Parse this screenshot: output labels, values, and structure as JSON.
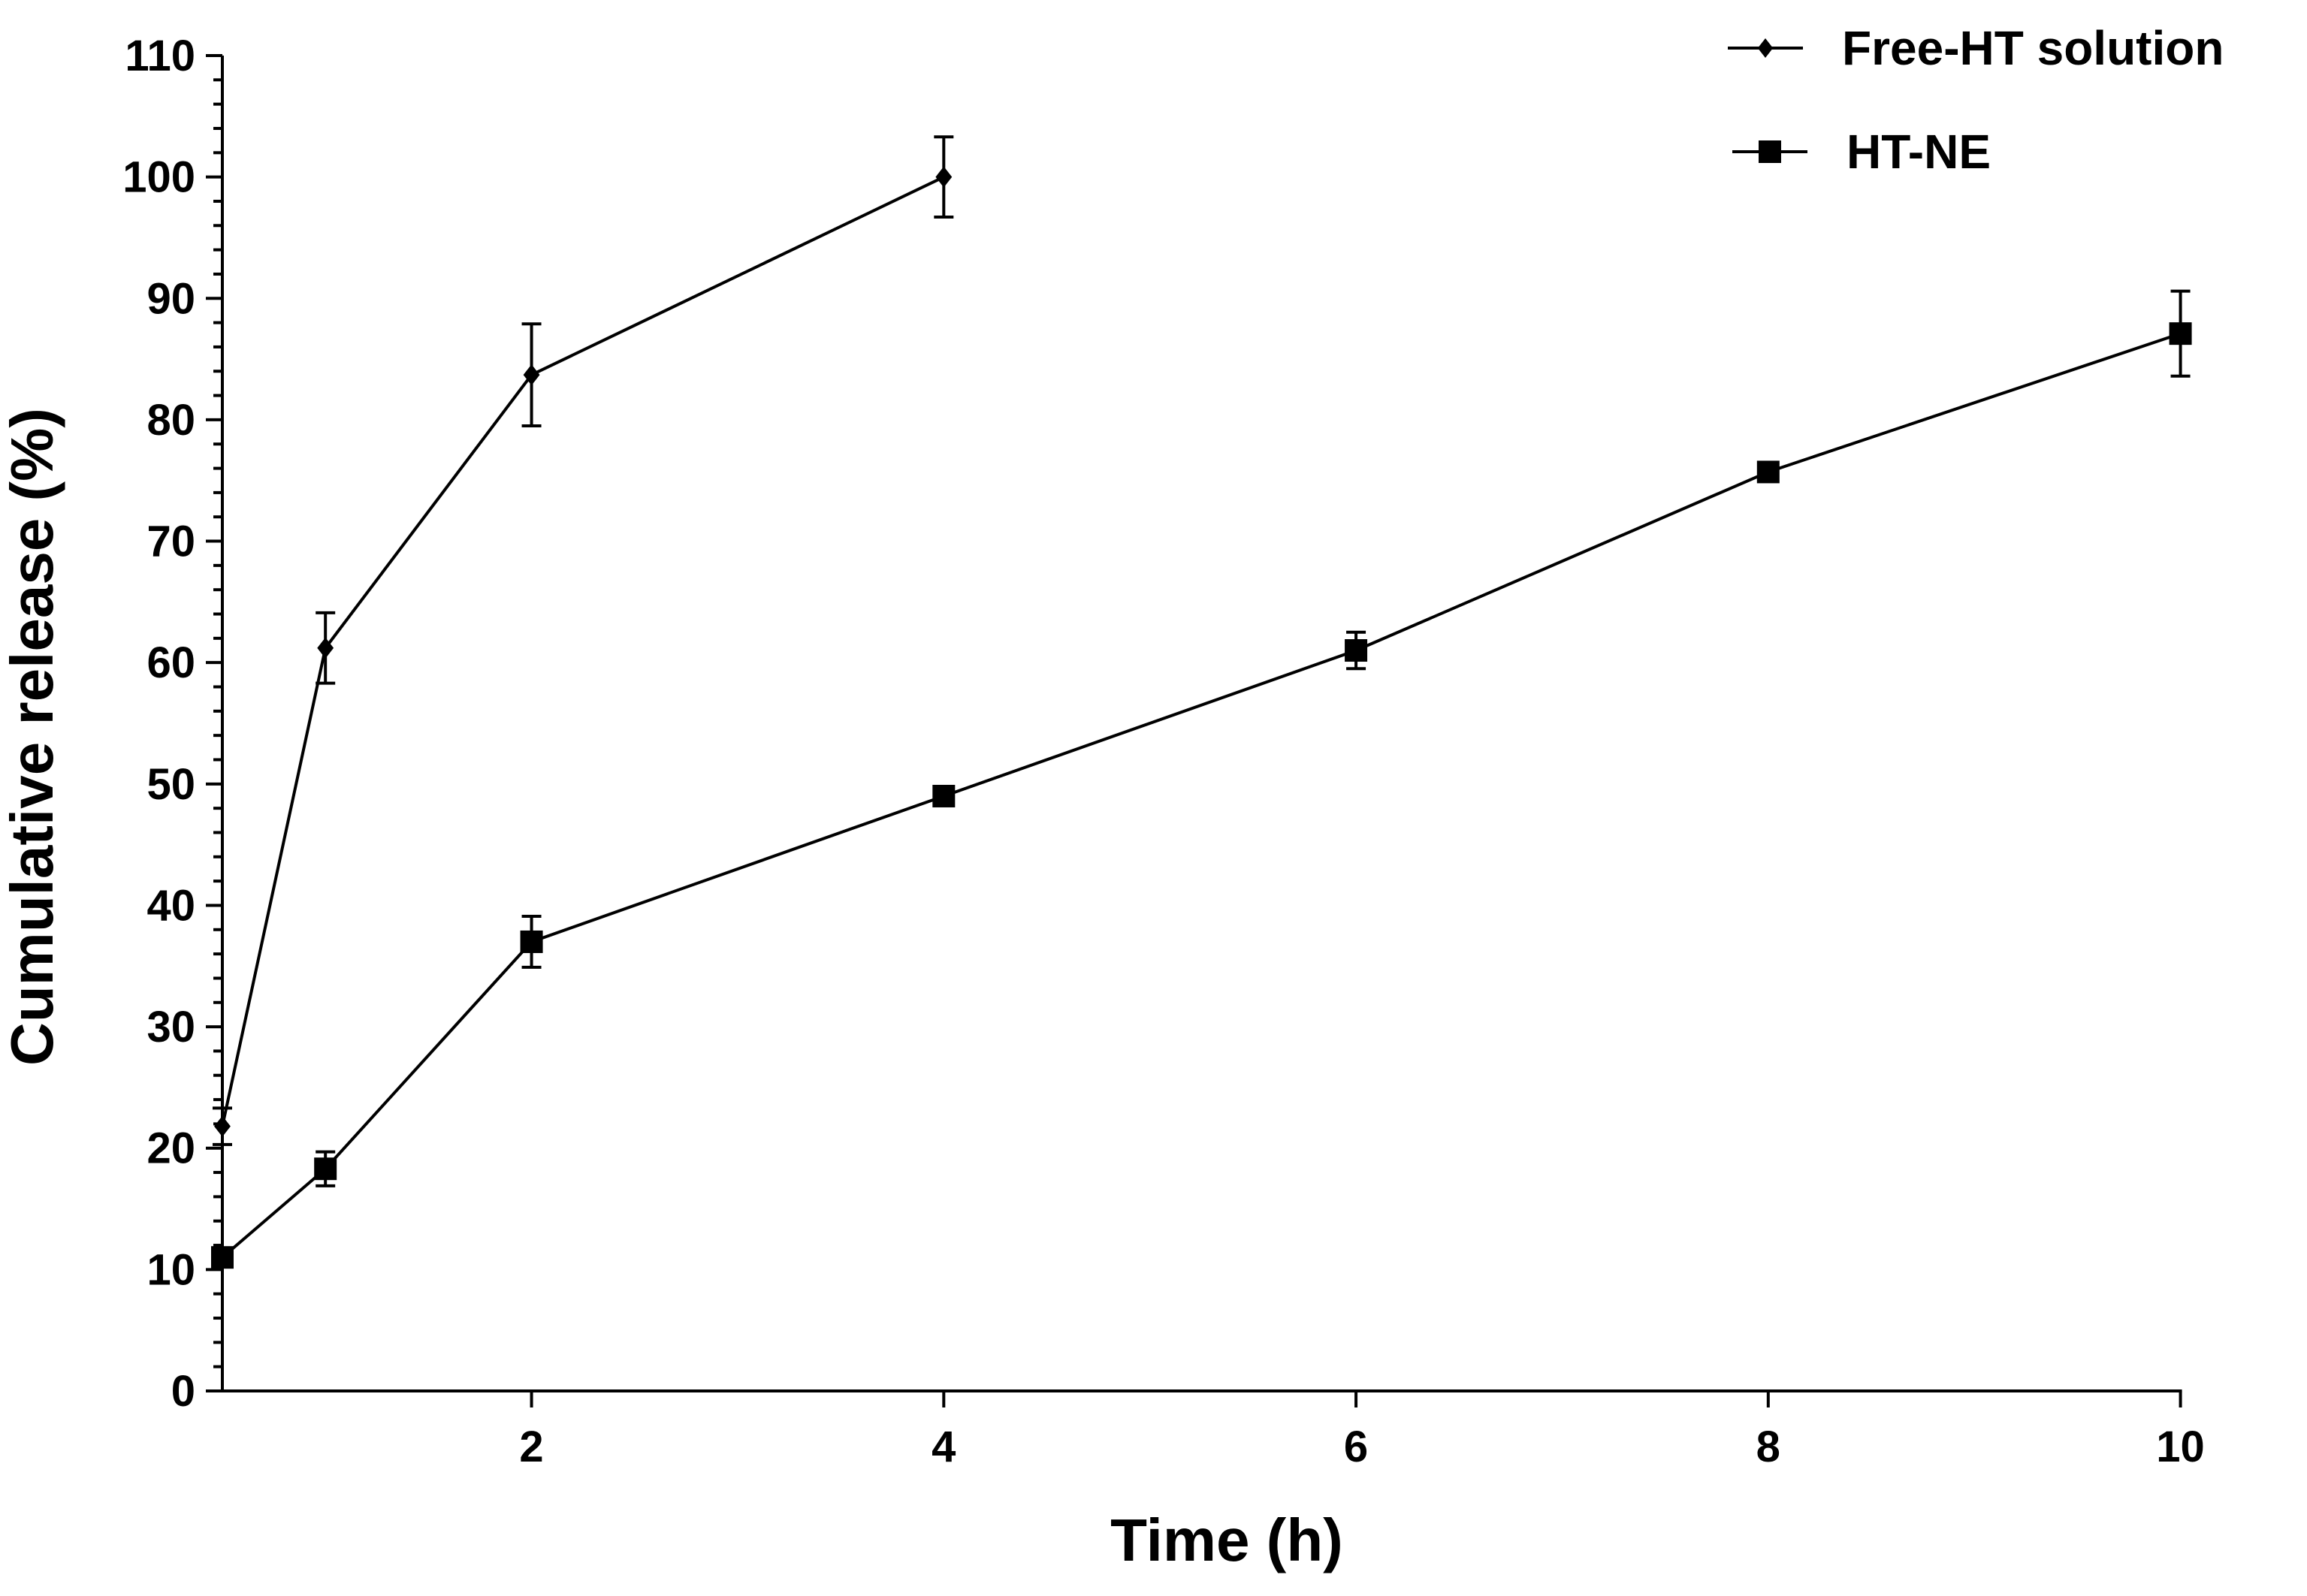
{
  "chart_data": {
    "type": "line",
    "title": "",
    "xlabel": "Time (h)",
    "ylabel": "Cumulative release (%)",
    "xlim": [
      0.5,
      10.1
    ],
    "ylim": [
      0,
      110
    ],
    "x_ticks": [
      "2",
      "4",
      "6",
      "8",
      "10"
    ],
    "y_ticks": [
      "0",
      "10",
      "20",
      "30",
      "40",
      "50",
      "60",
      "70",
      "80",
      "90",
      "100",
      "110"
    ],
    "grid": false,
    "legend_position": "top-right",
    "series": [
      {
        "name": "Free-HT solution",
        "marker": "diamond",
        "points": [
          {
            "x": 0.5,
            "y": 21.8,
            "err": 1.5
          },
          {
            "x": 1,
            "y": 61.2,
            "err": 2.9
          },
          {
            "x": 2,
            "y": 83.7,
            "err": 4.2
          },
          {
            "x": 4,
            "y": 100,
            "err": 3.3
          }
        ]
      },
      {
        "name": "HT-NE",
        "marker": "square",
        "points": [
          {
            "x": 0.5,
            "y": 11,
            "err": 0.6
          },
          {
            "x": 1,
            "y": 18.3,
            "err": 1.4
          },
          {
            "x": 2,
            "y": 37,
            "err": 2.1
          },
          {
            "x": 4,
            "y": 49,
            "err": 0.5
          },
          {
            "x": 6,
            "y": 61,
            "err": 1.5
          },
          {
            "x": 8,
            "y": 75.7,
            "err": 0.6
          },
          {
            "x": 10,
            "y": 87.1,
            "err": 3.5
          }
        ]
      }
    ]
  },
  "colors": {
    "ink": "#000000",
    "background": "#ffffff"
  }
}
